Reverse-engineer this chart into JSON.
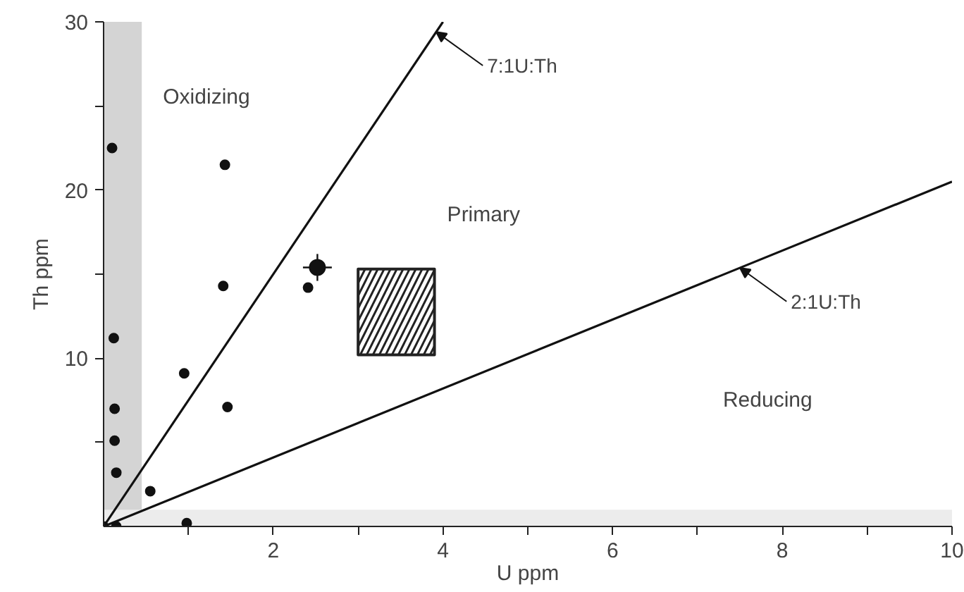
{
  "chart_data": {
    "type": "scatter",
    "xlabel": "U ppm",
    "ylabel": "Th ppm",
    "xlim": [
      0,
      10
    ],
    "ylim": [
      0,
      30
    ],
    "xticks": [
      {
        "value": 1,
        "label": null
      },
      2,
      {
        "value": 3,
        "label": null
      },
      4,
      {
        "value": 5,
        "label": null
      },
      6,
      {
        "value": 7,
        "label": null
      },
      8,
      {
        "value": 9,
        "label": null
      },
      10
    ],
    "yticks": [
      {
        "value": 5,
        "label": null
      },
      10,
      {
        "value": 15,
        "label": null
      },
      20,
      {
        "value": 25,
        "label": null
      },
      30
    ],
    "grid": false,
    "bands": [
      {
        "axis": "x",
        "from": 0,
        "to": 0.45,
        "color": "#d4d4d4"
      },
      {
        "axis": "y",
        "from": 0,
        "to": 1,
        "color": "#ececec"
      }
    ],
    "series": [
      {
        "type": "line",
        "name": "7:1U:Th",
        "color": "#111111",
        "x": [
          0,
          4
        ],
        "values": [
          0,
          30
        ]
      },
      {
        "type": "line",
        "name": "2:1U:Th",
        "color": "#111111",
        "x": [
          0,
          10
        ],
        "values": [
          0,
          20.5
        ]
      },
      {
        "type": "area",
        "color": "#222222",
        "x": [
          3.0,
          3.9,
          3.9,
          3.0,
          3.0
        ],
        "values": [
          10.2,
          10.2,
          15.3,
          15.3,
          10.2
        ]
      },
      {
        "marker": "circle",
        "color": "#111111",
        "x": [
          0,
          0.15,
          0.1,
          0.12,
          0.13,
          0.13,
          0.15,
          0.55,
          0.98,
          1.43,
          1.41,
          1.46,
          0.95,
          2.41
        ],
        "values": [
          0,
          0,
          22.5,
          11.2,
          7.0,
          5.1,
          3.2,
          2.1,
          0.2,
          21.5,
          14.3,
          7.1,
          9.1,
          14.2
        ]
      },
      {
        "marker": "circle",
        "color": "#111111",
        "x": [
          2.52
        ],
        "values": [
          15.4
        ],
        "errors": [
          0.8
        ],
        "xerrors": [
          0.17
        ]
      }
    ],
    "annotations": [
      "Oxidizing",
      "Primary",
      "Reducing"
    ]
  }
}
